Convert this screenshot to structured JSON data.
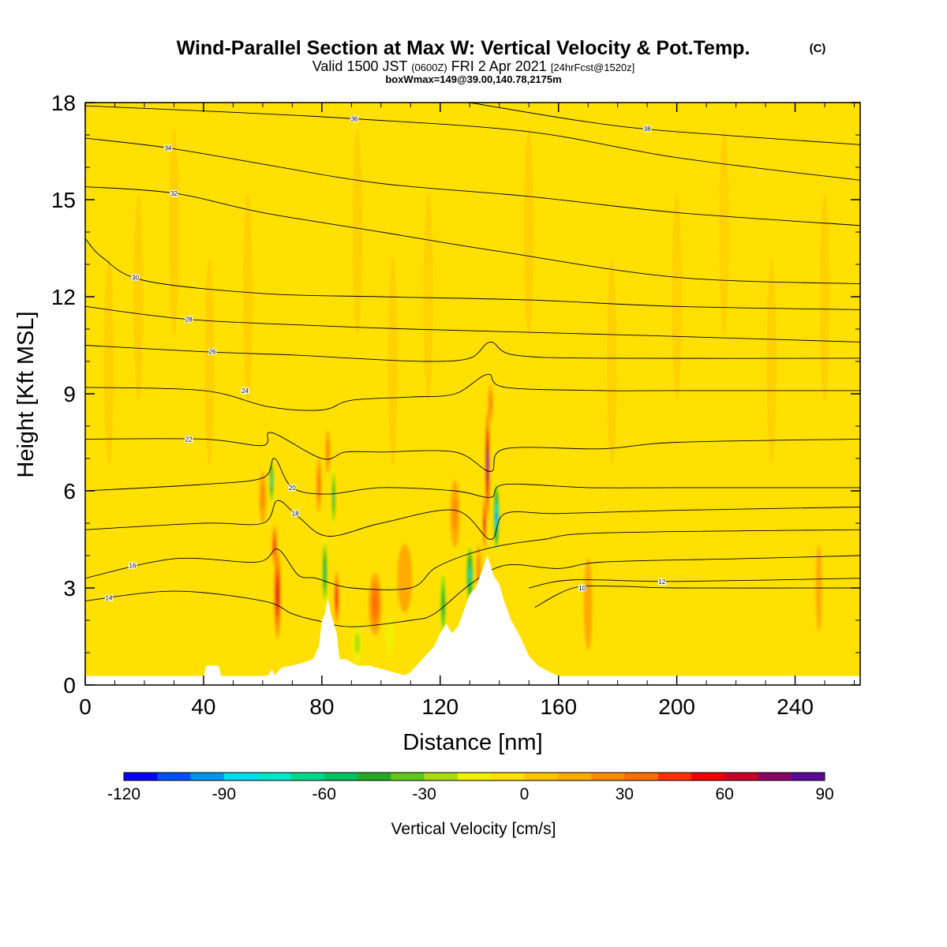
{
  "chart_data": {
    "type": "heatmap",
    "title": "Wind-Parallel Section at Max W: Vertical Velocity & Pot.Temp.",
    "title_mark": "(C)",
    "subtitle": {
      "prefix": "Valid 1500 JST",
      "utc": "(0600Z)",
      "date": "FRI 2 Apr 2021",
      "forecast": "[24hrFcst@1520z]"
    },
    "subtitle2": "boxWmax=149@39.00,140.78,2175m",
    "xlabel": "Distance [nm]",
    "ylabel": "Height [Kft MSL]",
    "xlim": [
      0,
      262
    ],
    "ylim": [
      0,
      18
    ],
    "x_ticks": [
      "0",
      "40",
      "80",
      "120",
      "160",
      "200",
      "240"
    ],
    "y_ticks": [
      "0",
      "3",
      "6",
      "9",
      "12",
      "15",
      "18"
    ],
    "colorbar": {
      "label": "Vertical Velocity [cm/s]",
      "ticks": [
        "-120",
        "-90",
        "-60",
        "-30",
        "0",
        "30",
        "60",
        "90"
      ],
      "range": [
        -120,
        90
      ],
      "step": 10,
      "colors": [
        "#0a00f5",
        "#0050f5",
        "#0096f0",
        "#00dcf0",
        "#00e6c8",
        "#00d78c",
        "#00c060",
        "#22aa22",
        "#60c818",
        "#a8dc10",
        "#f0f000",
        "#ffe000",
        "#ffc400",
        "#ffaa00",
        "#ff8c00",
        "#ff6e00",
        "#ff3200",
        "#f00000",
        "#c80028",
        "#8c0064",
        "#5a0a96"
      ]
    },
    "background_value_cms": 0,
    "terrain_kft": [
      [
        0,
        0.28
      ],
      [
        40,
        0.28
      ],
      [
        41,
        0.6
      ],
      [
        45,
        0.6
      ],
      [
        46,
        0.28
      ],
      [
        60,
        0.28
      ],
      [
        62,
        0.3
      ],
      [
        63,
        0.5
      ],
      [
        64,
        0.3
      ],
      [
        66,
        0.5
      ],
      [
        67,
        0.55
      ],
      [
        70,
        0.6
      ],
      [
        74,
        0.7
      ],
      [
        77,
        0.8
      ],
      [
        79,
        1.2
      ],
      [
        80,
        2.0
      ],
      [
        81,
        2.2
      ],
      [
        82,
        2.7
      ],
      [
        83,
        2.2
      ],
      [
        85,
        1.6
      ],
      [
        86,
        0.8
      ],
      [
        88,
        0.8
      ],
      [
        92,
        0.6
      ],
      [
        96,
        0.6
      ],
      [
        100,
        0.5
      ],
      [
        104,
        0.4
      ],
      [
        108,
        0.3
      ],
      [
        110,
        0.4
      ],
      [
        112,
        0.6
      ],
      [
        115,
        0.9
      ],
      [
        118,
        1.2
      ],
      [
        120,
        1.6
      ],
      [
        122,
        1.9
      ],
      [
        124,
        1.6
      ],
      [
        126,
        1.8
      ],
      [
        128,
        2.3
      ],
      [
        130,
        2.8
      ],
      [
        132,
        3.0
      ],
      [
        134,
        3.5
      ],
      [
        136,
        4.0
      ],
      [
        137,
        3.7
      ],
      [
        138,
        3.4
      ],
      [
        140,
        3.1
      ],
      [
        142,
        2.5
      ],
      [
        144,
        2.0
      ],
      [
        147,
        1.5
      ],
      [
        150,
        0.9
      ],
      [
        153,
        0.6
      ],
      [
        157,
        0.4
      ],
      [
        160,
        0.28
      ],
      [
        262,
        0.28
      ]
    ],
    "w_features": [
      {
        "x": 65,
        "y": 2.8,
        "sx": 1.3,
        "sy": 1.5,
        "w": 60
      },
      {
        "x": 64,
        "y": 4.3,
        "sx": 1.0,
        "sy": 0.7,
        "w": 45
      },
      {
        "x": 63,
        "y": 6.3,
        "sx": 0.9,
        "sy": 0.8,
        "w": -65
      },
      {
        "x": 60,
        "y": 5.8,
        "sx": 1.5,
        "sy": 1.0,
        "w": 20
      },
      {
        "x": 81,
        "y": 3.5,
        "sx": 1.2,
        "sy": 1.2,
        "w": -55
      },
      {
        "x": 85,
        "y": 2.7,
        "sx": 0.9,
        "sy": 0.9,
        "w": 55
      },
      {
        "x": 84,
        "y": 5.8,
        "sx": 0.9,
        "sy": 1.1,
        "w": -50
      },
      {
        "x": 82,
        "y": 7.2,
        "sx": 1.0,
        "sy": 0.8,
        "w": 25
      },
      {
        "x": 79,
        "y": 6.2,
        "sx": 1.0,
        "sy": 1.0,
        "w": 30
      },
      {
        "x": 98,
        "y": 2.5,
        "sx": 2.5,
        "sy": 1.1,
        "w": 35
      },
      {
        "x": 92,
        "y": 1.3,
        "sx": 2.0,
        "sy": 0.8,
        "w": -20
      },
      {
        "x": 103,
        "y": 1.5,
        "sx": 2.0,
        "sy": 0.8,
        "w": -15
      },
      {
        "x": 108,
        "y": 3.3,
        "sx": 3.5,
        "sy": 1.5,
        "w": 12
      },
      {
        "x": 121,
        "y": 2.5,
        "sx": 1.4,
        "sy": 1.3,
        "w": -45
      },
      {
        "x": 125,
        "y": 5.3,
        "sx": 2.0,
        "sy": 1.3,
        "w": 20
      },
      {
        "x": 130,
        "y": 3.4,
        "sx": 1.5,
        "sy": 1.1,
        "w": -70
      },
      {
        "x": 133,
        "y": 3.6,
        "sx": 1.1,
        "sy": 0.9,
        "w": 20
      },
      {
        "x": 136,
        "y": 6.8,
        "sx": 0.8,
        "sy": 1.8,
        "w": 90
      },
      {
        "x": 135,
        "y": 5.0,
        "sx": 0.6,
        "sy": 0.9,
        "w": 60
      },
      {
        "x": 139,
        "y": 5.2,
        "sx": 1.2,
        "sy": 1.2,
        "w": -90
      },
      {
        "x": 137,
        "y": 8.7,
        "sx": 1.0,
        "sy": 0.7,
        "w": 25
      },
      {
        "x": 170,
        "y": 2.5,
        "sx": 2.0,
        "sy": 2.0,
        "w": 12
      },
      {
        "x": 248,
        "y": 3.0,
        "sx": 1.5,
        "sy": 2.0,
        "w": 10
      }
    ],
    "isentropes": [
      {
        "label": "10",
        "label_at": [
          168,
          3.0
        ],
        "points": [
          [
            152,
            2.4
          ],
          [
            165,
            3.0
          ],
          [
            180,
            3.05
          ],
          [
            200,
            3.0
          ],
          [
            262,
            3.0
          ]
        ]
      },
      {
        "label": "12",
        "label_at": [
          195,
          3.2
        ],
        "points": [
          [
            150,
            3.0
          ],
          [
            165,
            3.25
          ],
          [
            200,
            3.2
          ],
          [
            262,
            3.3
          ]
        ]
      },
      {
        "label": "14",
        "label_at": [
          8,
          2.7
        ],
        "points": [
          [
            0,
            2.6
          ],
          [
            30,
            2.9
          ],
          [
            60,
            2.6
          ],
          [
            70,
            2.2
          ],
          [
            78,
            2.0
          ],
          [
            90,
            1.8
          ],
          [
            110,
            2.0
          ],
          [
            118,
            2.2
          ],
          [
            130,
            3.1
          ],
          [
            142,
            3.7
          ],
          [
            160,
            3.6
          ],
          [
            175,
            3.8
          ],
          [
            220,
            3.9
          ],
          [
            262,
            4.0
          ]
        ]
      },
      {
        "label": "16",
        "label_at": [
          16,
          3.7
        ],
        "points": [
          [
            0,
            3.3
          ],
          [
            30,
            3.9
          ],
          [
            58,
            3.8
          ],
          [
            65,
            4.2
          ],
          [
            72,
            3.4
          ],
          [
            78,
            3.3
          ],
          [
            90,
            3.0
          ],
          [
            110,
            3.0
          ],
          [
            118,
            3.6
          ],
          [
            128,
            4.0
          ],
          [
            140,
            4.3
          ],
          [
            155,
            4.5
          ],
          [
            175,
            4.7
          ],
          [
            262,
            4.8
          ]
        ]
      },
      {
        "label": "18",
        "label_at": [
          71,
          5.3
        ],
        "points": [
          [
            0,
            4.8
          ],
          [
            40,
            5.0
          ],
          [
            60,
            5.0
          ],
          [
            65,
            5.7
          ],
          [
            72,
            5.2
          ],
          [
            82,
            4.6
          ],
          [
            100,
            5.0
          ],
          [
            125,
            5.4
          ],
          [
            137,
            4.5
          ],
          [
            142,
            5.3
          ],
          [
            160,
            5.3
          ],
          [
            200,
            5.4
          ],
          [
            262,
            5.5
          ]
        ]
      },
      {
        "label": "20",
        "label_at": [
          70,
          6.1
        ],
        "points": [
          [
            0,
            6.0
          ],
          [
            40,
            6.2
          ],
          [
            60,
            6.4
          ],
          [
            64,
            7.0
          ],
          [
            70,
            6.1
          ],
          [
            82,
            5.9
          ],
          [
            100,
            6.1
          ],
          [
            125,
            6.0
          ],
          [
            137,
            5.8
          ],
          [
            142,
            6.2
          ],
          [
            170,
            6.1
          ],
          [
            200,
            6.1
          ],
          [
            262,
            6.1
          ]
        ]
      },
      {
        "label": "22",
        "label_at": [
          35,
          7.6
        ],
        "points": [
          [
            0,
            7.6
          ],
          [
            40,
            7.6
          ],
          [
            60,
            7.4
          ],
          [
            63,
            7.8
          ],
          [
            80,
            7.0
          ],
          [
            88,
            7.2
          ],
          [
            100,
            7.2
          ],
          [
            125,
            7.2
          ],
          [
            137,
            6.6
          ],
          [
            142,
            7.3
          ],
          [
            175,
            7.3
          ],
          [
            200,
            7.5
          ],
          [
            262,
            7.6
          ]
        ]
      },
      {
        "label": "24",
        "label_at": [
          54,
          9.1
        ],
        "points": [
          [
            0,
            9.2
          ],
          [
            40,
            9.1
          ],
          [
            62,
            8.6
          ],
          [
            80,
            8.5
          ],
          [
            90,
            8.8
          ],
          [
            110,
            8.9
          ],
          [
            125,
            9.0
          ],
          [
            136,
            9.6
          ],
          [
            142,
            9.2
          ],
          [
            175,
            9.1
          ],
          [
            200,
            9.1
          ],
          [
            262,
            9.1
          ]
        ]
      },
      {
        "label": "26",
        "label_at": [
          43,
          10.3
        ],
        "points": [
          [
            0,
            10.5
          ],
          [
            40,
            10.3
          ],
          [
            70,
            10.2
          ],
          [
            90,
            10.1
          ],
          [
            115,
            10.0
          ],
          [
            130,
            10.1
          ],
          [
            137,
            10.6
          ],
          [
            145,
            10.2
          ],
          [
            175,
            10.1
          ],
          [
            262,
            10.1
          ]
        ]
      },
      {
        "label": "28",
        "label_at": [
          35,
          11.3
        ],
        "points": [
          [
            0,
            11.7
          ],
          [
            35,
            11.3
          ],
          [
            80,
            11.1
          ],
          [
            110,
            11.0
          ],
          [
            150,
            10.9
          ],
          [
            190,
            10.8
          ],
          [
            262,
            10.6
          ]
        ]
      },
      {
        "label": "30",
        "label_at": [
          17,
          12.6
        ],
        "points": [
          [
            0,
            13.8
          ],
          [
            6,
            13.2
          ],
          [
            20,
            12.5
          ],
          [
            60,
            12.1
          ],
          [
            100,
            12.0
          ],
          [
            150,
            11.9
          ],
          [
            200,
            11.7
          ],
          [
            262,
            11.6
          ]
        ]
      },
      {
        "label": "32",
        "label_at": [
          30,
          15.2
        ],
        "points": [
          [
            0,
            15.4
          ],
          [
            30,
            15.2
          ],
          [
            60,
            14.6
          ],
          [
            100,
            14.0
          ],
          [
            140,
            13.4
          ],
          [
            200,
            12.6
          ],
          [
            262,
            12.4
          ]
        ]
      },
      {
        "label": "34",
        "label_at": [
          28,
          16.6
        ],
        "points": [
          [
            0,
            16.9
          ],
          [
            28,
            16.6
          ],
          [
            60,
            16.1
          ],
          [
            100,
            15.5
          ],
          [
            150,
            15.1
          ],
          [
            200,
            14.6
          ],
          [
            262,
            14.2
          ]
        ]
      },
      {
        "label": "36",
        "label_at": [
          91,
          17.5
        ],
        "points": [
          [
            0,
            17.9
          ],
          [
            50,
            17.7
          ],
          [
            91,
            17.5
          ],
          [
            150,
            17.1
          ],
          [
            200,
            16.3
          ],
          [
            262,
            15.6
          ]
        ]
      },
      {
        "label": "38",
        "label_at": [
          190,
          17.2
        ],
        "points": [
          [
            130,
            18.0
          ],
          [
            170,
            17.4
          ],
          [
            200,
            17.1
          ],
          [
            262,
            16.7
          ]
        ]
      }
    ]
  }
}
